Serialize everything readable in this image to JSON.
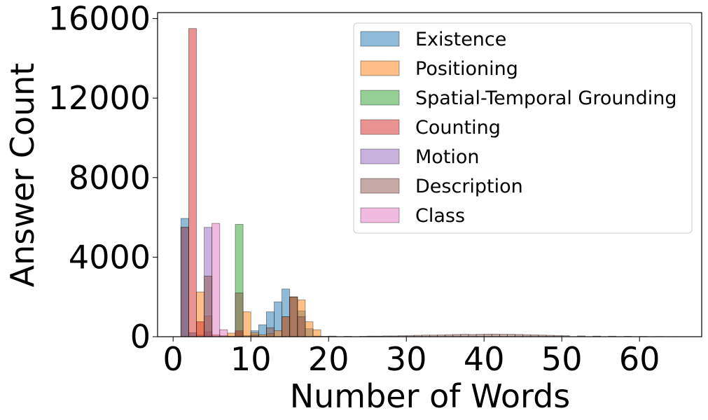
{
  "chart_data": {
    "type": "bar",
    "xlabel": "Number of Words",
    "ylabel": "Answer Count",
    "xlim": [
      -2,
      68
    ],
    "ylim": [
      0,
      16300
    ],
    "xticks": [
      0,
      10,
      20,
      30,
      40,
      50,
      60
    ],
    "yticks": [
      0,
      4000,
      8000,
      12000,
      16000
    ],
    "bin_width": 1,
    "legend_position": "upper right",
    "series": [
      {
        "name": "Existence",
        "color": "#1f77b4",
        "x": [
          1,
          2,
          3,
          4,
          5,
          6,
          7,
          8,
          9,
          10,
          11,
          12,
          13,
          14,
          15,
          16,
          17,
          18
        ],
        "values": [
          5950,
          200,
          80,
          60,
          50,
          40,
          30,
          50,
          60,
          300,
          600,
          1250,
          1750,
          2400,
          2000,
          1300,
          400,
          30
        ]
      },
      {
        "name": "Positioning",
        "color": "#ff7f0e",
        "x": [
          1,
          2,
          3,
          4,
          5,
          6,
          7,
          8,
          9,
          10,
          11,
          12,
          13,
          14,
          15,
          16,
          17,
          18,
          19
        ],
        "values": [
          0,
          0,
          2250,
          1050,
          100,
          50,
          180,
          250,
          1250,
          200,
          100,
          150,
          300,
          1000,
          2000,
          1850,
          750,
          350,
          20
        ]
      },
      {
        "name": "Spatial-Temporal Grounding",
        "color": "#2ca02c",
        "x": [
          8
        ],
        "values": [
          5650
        ]
      },
      {
        "name": "Counting",
        "color": "#d62728",
        "x": [
          1,
          2,
          3,
          4,
          8
        ],
        "values": [
          0,
          15500,
          750,
          250,
          300
        ]
      },
      {
        "name": "Motion",
        "color": "#9467bd",
        "x": [
          1,
          4
        ],
        "values": [
          5500,
          5500
        ]
      },
      {
        "name": "Description",
        "color": "#8c564b",
        "x": [
          1,
          4,
          8,
          10,
          12,
          14,
          15,
          16,
          20,
          22,
          24,
          25,
          26,
          27,
          28,
          29,
          30,
          31,
          32,
          33,
          34,
          35,
          36,
          37,
          38,
          39,
          40,
          41,
          42,
          43,
          44,
          45,
          46,
          47,
          48,
          49,
          50,
          52,
          54,
          56,
          58,
          60,
          62,
          64
        ],
        "values": [
          5500,
          3050,
          2200,
          80,
          450,
          1000,
          2000,
          1000,
          30,
          20,
          20,
          30,
          30,
          40,
          40,
          50,
          60,
          70,
          80,
          80,
          90,
          100,
          110,
          120,
          110,
          120,
          130,
          130,
          120,
          120,
          110,
          100,
          90,
          80,
          70,
          60,
          50,
          40,
          30,
          25,
          20,
          15,
          10,
          5
        ]
      },
      {
        "name": "Class",
        "color": "#e377c2",
        "x": [
          5,
          6
        ],
        "values": [
          5700,
          350
        ]
      }
    ]
  }
}
